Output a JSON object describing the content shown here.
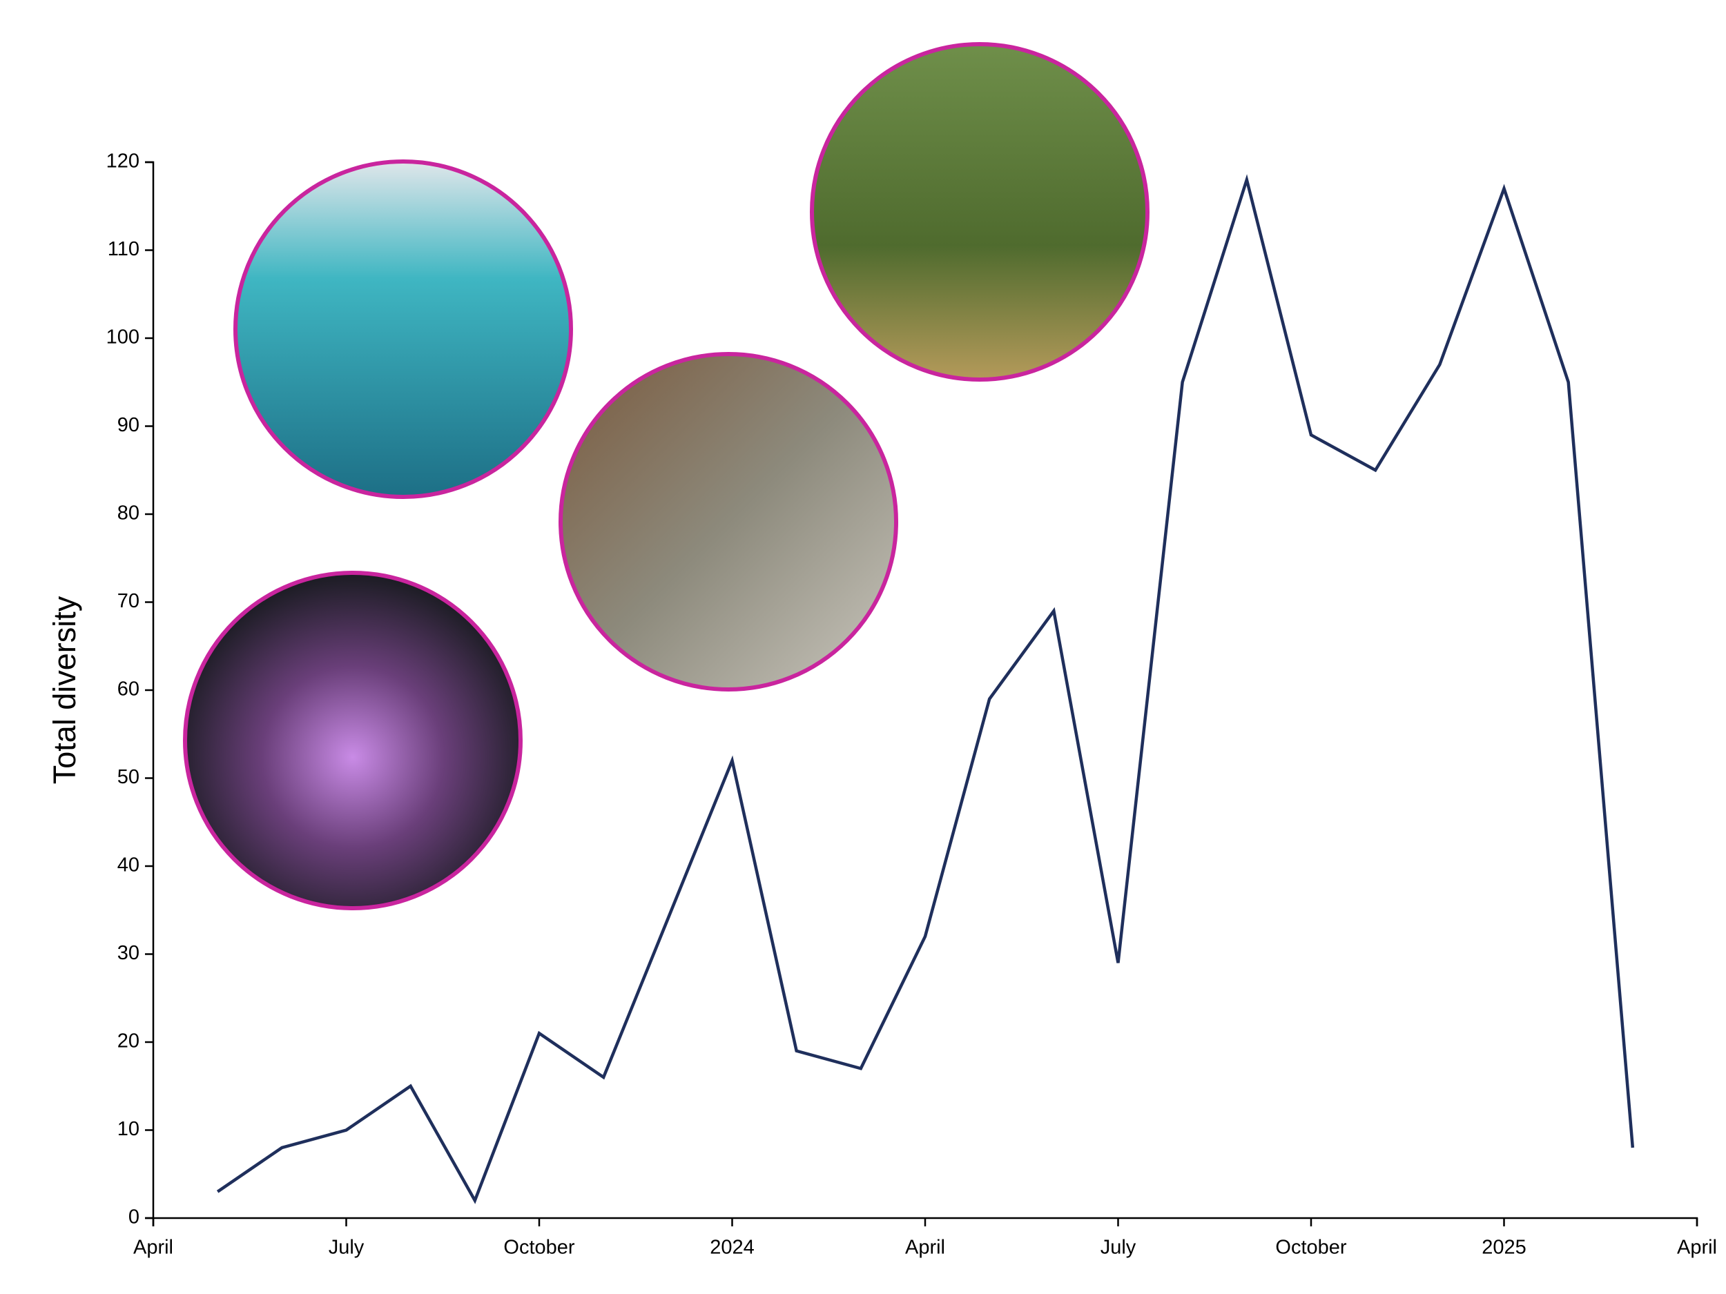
{
  "chart_data": {
    "type": "line",
    "y_label": "Total diversity",
    "x": [
      "2023-05",
      "2023-06",
      "2023-07",
      "2023-08",
      "2023-09",
      "2023-10",
      "2023-11",
      "2023-12",
      "2024-01",
      "2024-02",
      "2024-03",
      "2024-04",
      "2024-05",
      "2024-06",
      "2024-07",
      "2024-08",
      "2024-09",
      "2024-10",
      "2024-11",
      "2024-12",
      "2025-01",
      "2025-02",
      "2025-03"
    ],
    "values": [
      3,
      8,
      10,
      15,
      2,
      21,
      16,
      34,
      52,
      19,
      17,
      32,
      59,
      69,
      29,
      95,
      118,
      89,
      85,
      97,
      117,
      95,
      8
    ],
    "color": "#1f2f5c",
    "xlim": [
      "2023-04",
      "2025-04"
    ],
    "xticks": [
      {
        "value": "2023-04",
        "label": "April"
      },
      {
        "value": "2023-07",
        "label": "July"
      },
      {
        "value": "2023-10",
        "label": "October"
      },
      {
        "value": "2024-01",
        "label": "2024"
      },
      {
        "value": "2024-04",
        "label": "April"
      },
      {
        "value": "2024-07",
        "label": "July"
      },
      {
        "value": "2024-10",
        "label": "October"
      },
      {
        "value": "2025-01",
        "label": "2025"
      },
      {
        "value": "2025-04",
        "label": "April"
      }
    ],
    "ylim": [
      0,
      120
    ],
    "yticks": [
      0,
      10,
      20,
      30,
      40,
      50,
      60,
      70,
      80,
      90,
      100,
      110,
      120
    ],
    "grid": false
  }
}
